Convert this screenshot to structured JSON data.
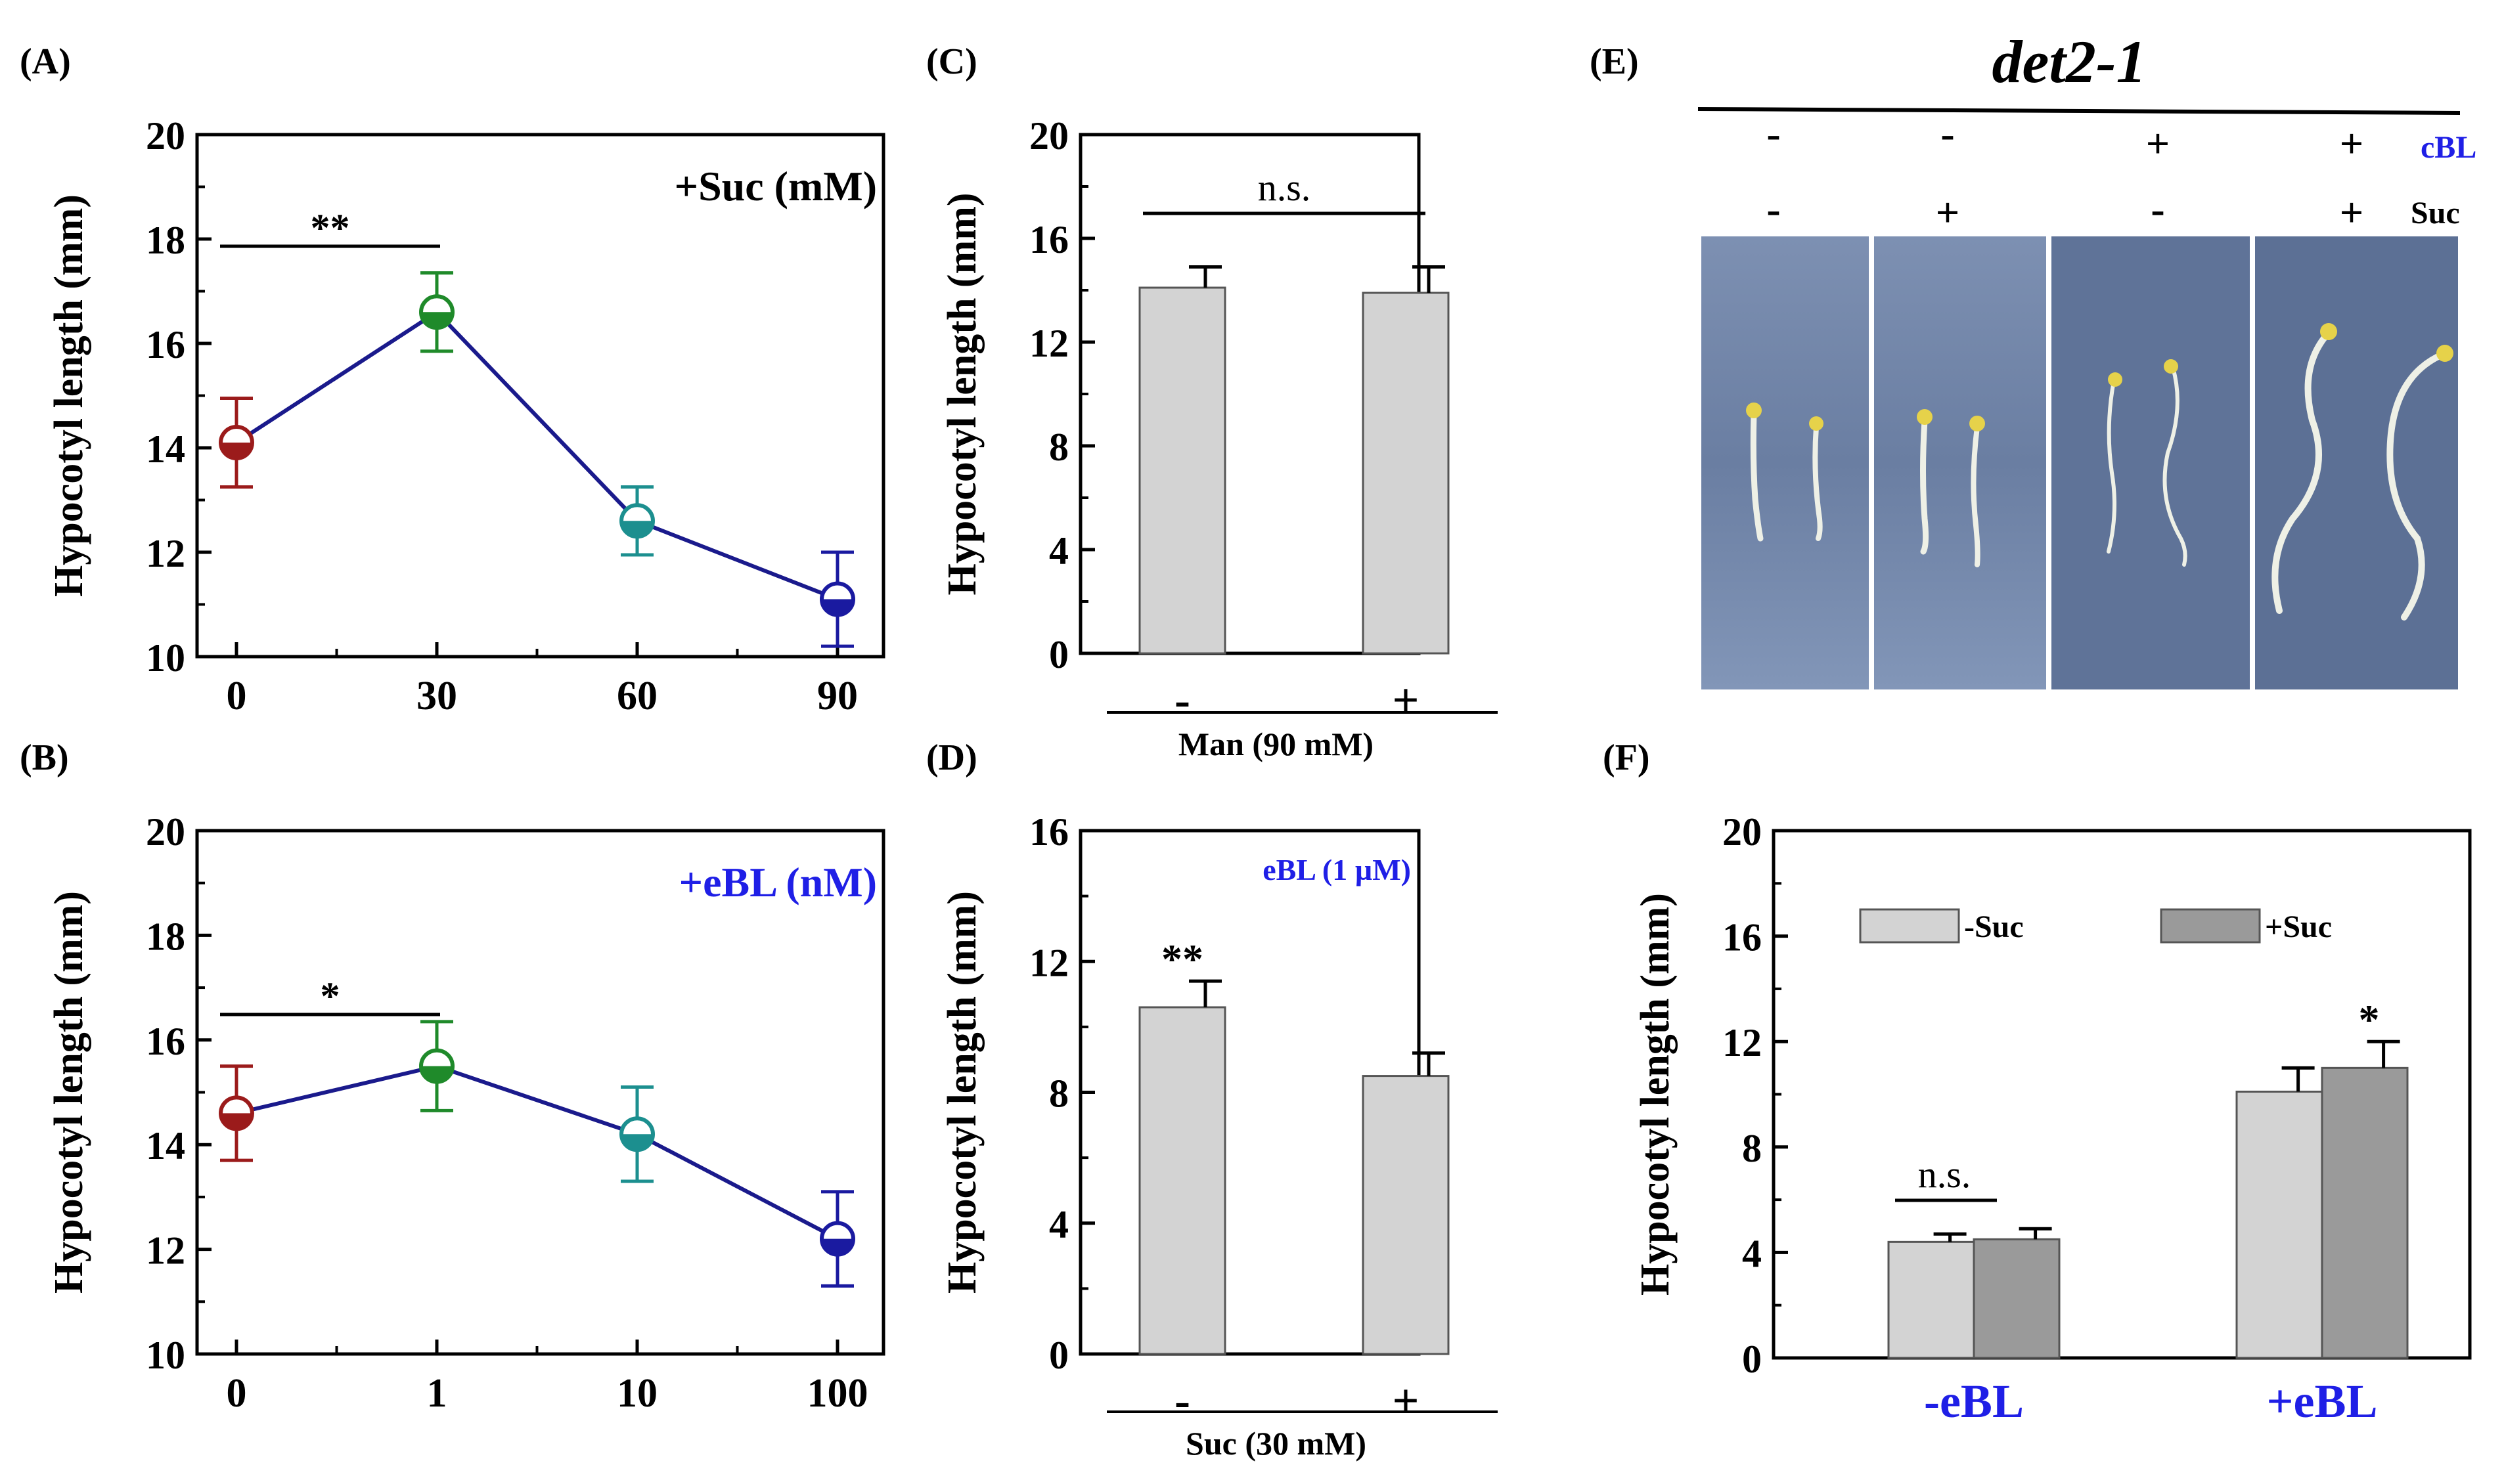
{
  "panel_labels": {
    "A": "(A)",
    "B": "(B)",
    "C": "(C)",
    "D": "(D)",
    "E": "(E)",
    "F": "(F)"
  },
  "colors": {
    "series_0": "#9b1b1b",
    "series_1": "#1f8a2a",
    "series_2": "#1c8f8f",
    "series_3": "#1a1aa0",
    "line": "#1a1a8c",
    "bar_light": "#d3d3d3",
    "bar_dark": "#9a9a9a",
    "blue_text": "#1f1fe6",
    "photo_bg": "#6c7fa1"
  },
  "chart_data": [
    {
      "id": "A",
      "type": "line",
      "categories": [
        "0",
        "30",
        "60",
        "90"
      ],
      "values": [
        14.1,
        16.6,
        12.6,
        11.1
      ],
      "errors": [
        0.85,
        0.75,
        0.65,
        0.9
      ],
      "ylabel": "Hypocotyl length (mm)",
      "ylim": [
        10,
        20
      ],
      "yticks": [
        10,
        12,
        14,
        16,
        18,
        20
      ],
      "annotation": "+Suc (mM)",
      "significance": {
        "from": 0,
        "to": 1,
        "label": "**"
      }
    },
    {
      "id": "B",
      "type": "line",
      "categories": [
        "0",
        "1",
        "10",
        "100"
      ],
      "values": [
        14.6,
        15.5,
        14.2,
        12.2
      ],
      "errors": [
        0.9,
        0.85,
        0.9,
        0.9
      ],
      "ylabel": "Hypocotyl length (mm)",
      "ylim": [
        10,
        20
      ],
      "yticks": [
        10,
        12,
        14,
        16,
        18,
        20
      ],
      "annotation": "+eBL (nM)",
      "significance": {
        "from": 0,
        "to": 1,
        "label": "*"
      }
    },
    {
      "id": "C",
      "type": "bar",
      "categories": [
        "-",
        "+"
      ],
      "values": [
        14.1,
        13.9
      ],
      "errors": [
        0.8,
        1.0
      ],
      "ylabel": "Hypocotyl length (mm)",
      "xlabel": "Man (90 mM)",
      "ylim": [
        0,
        20
      ],
      "yticks": [
        0,
        4,
        8,
        12,
        16,
        20
      ],
      "significance": {
        "from": 0,
        "to": 1,
        "label": "n.s."
      }
    },
    {
      "id": "D",
      "type": "bar",
      "categories": [
        "-",
        "+"
      ],
      "values": [
        10.6,
        8.5
      ],
      "errors": [
        0.8,
        0.7
      ],
      "ylabel": "Hypocotyl length (mm)",
      "xlabel": "Suc (30 mM)",
      "ylim": [
        0,
        16
      ],
      "yticks": [
        0,
        4,
        8,
        12,
        16
      ],
      "annotation": "eBL (1 µM)",
      "bar_labels": [
        "**",
        ""
      ]
    },
    {
      "id": "F",
      "type": "bar",
      "categories": [
        "-eBL",
        "+eBL"
      ],
      "series": [
        {
          "name": "-Suc",
          "values": [
            4.4,
            10.1
          ],
          "errors": [
            0.3,
            0.9
          ]
        },
        {
          "name": "+Suc",
          "values": [
            4.5,
            11.0
          ],
          "errors": [
            0.4,
            1.0
          ]
        }
      ],
      "ylabel": "Hypocotyl length (mm)",
      "ylim": [
        0,
        20
      ],
      "yticks": [
        0,
        4,
        8,
        12,
        16,
        20
      ],
      "group_significance": [
        {
          "group": 0,
          "label": "n.s."
        }
      ],
      "bar_labels": [
        {
          "group": 1,
          "series": 1,
          "label": "*"
        }
      ]
    }
  ],
  "panel_e": {
    "title": "det2-1",
    "row_labels": [
      "cBL",
      "Suc"
    ],
    "ebl_row": [
      "-",
      "-",
      "+",
      "+"
    ],
    "suc_row": [
      "-",
      "+",
      "-",
      "+"
    ]
  }
}
